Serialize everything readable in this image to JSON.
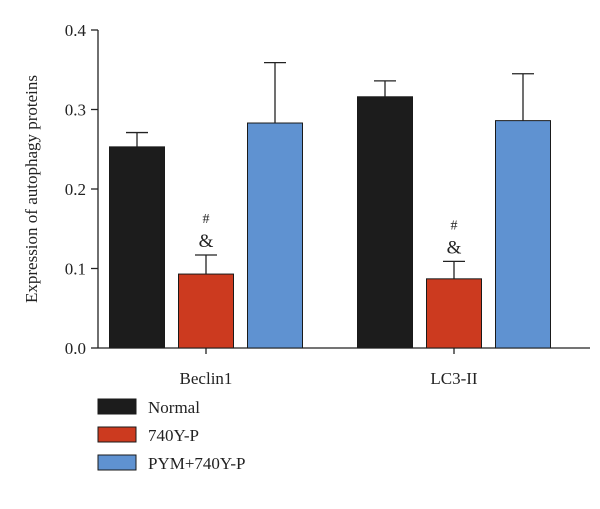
{
  "chart_data": {
    "type": "bar",
    "categories": [
      "Beclin1",
      "LC3-II"
    ],
    "series": [
      {
        "name": "Normal",
        "color": "#1c1c1c",
        "values": [
          0.253,
          0.316
        ],
        "errors": [
          0.018,
          0.02
        ],
        "annotations": [
          "",
          ""
        ]
      },
      {
        "name": "740Y-P",
        "color": "#cc3a1f",
        "values": [
          0.093,
          0.087
        ],
        "errors": [
          0.024,
          0.022
        ],
        "annotations": [
          "#\n&",
          "#\n&"
        ]
      },
      {
        "name": "PYM+740Y-P",
        "color": "#5f92d1",
        "values": [
          0.283,
          0.286
        ],
        "errors": [
          0.076,
          0.059
        ],
        "annotations": [
          "",
          ""
        ]
      }
    ],
    "ylabel": "Expression of autophagy proteins",
    "xlabel": "",
    "title": "",
    "ylim": [
      0,
      0.4
    ],
    "yticks": [
      0.0,
      0.1,
      0.2,
      0.3,
      0.4
    ],
    "ytick_labels": [
      "0.0",
      "0.1",
      "0.2",
      "0.3",
      "0.4"
    ],
    "grid": false,
    "legend_position": "bottom-left"
  }
}
